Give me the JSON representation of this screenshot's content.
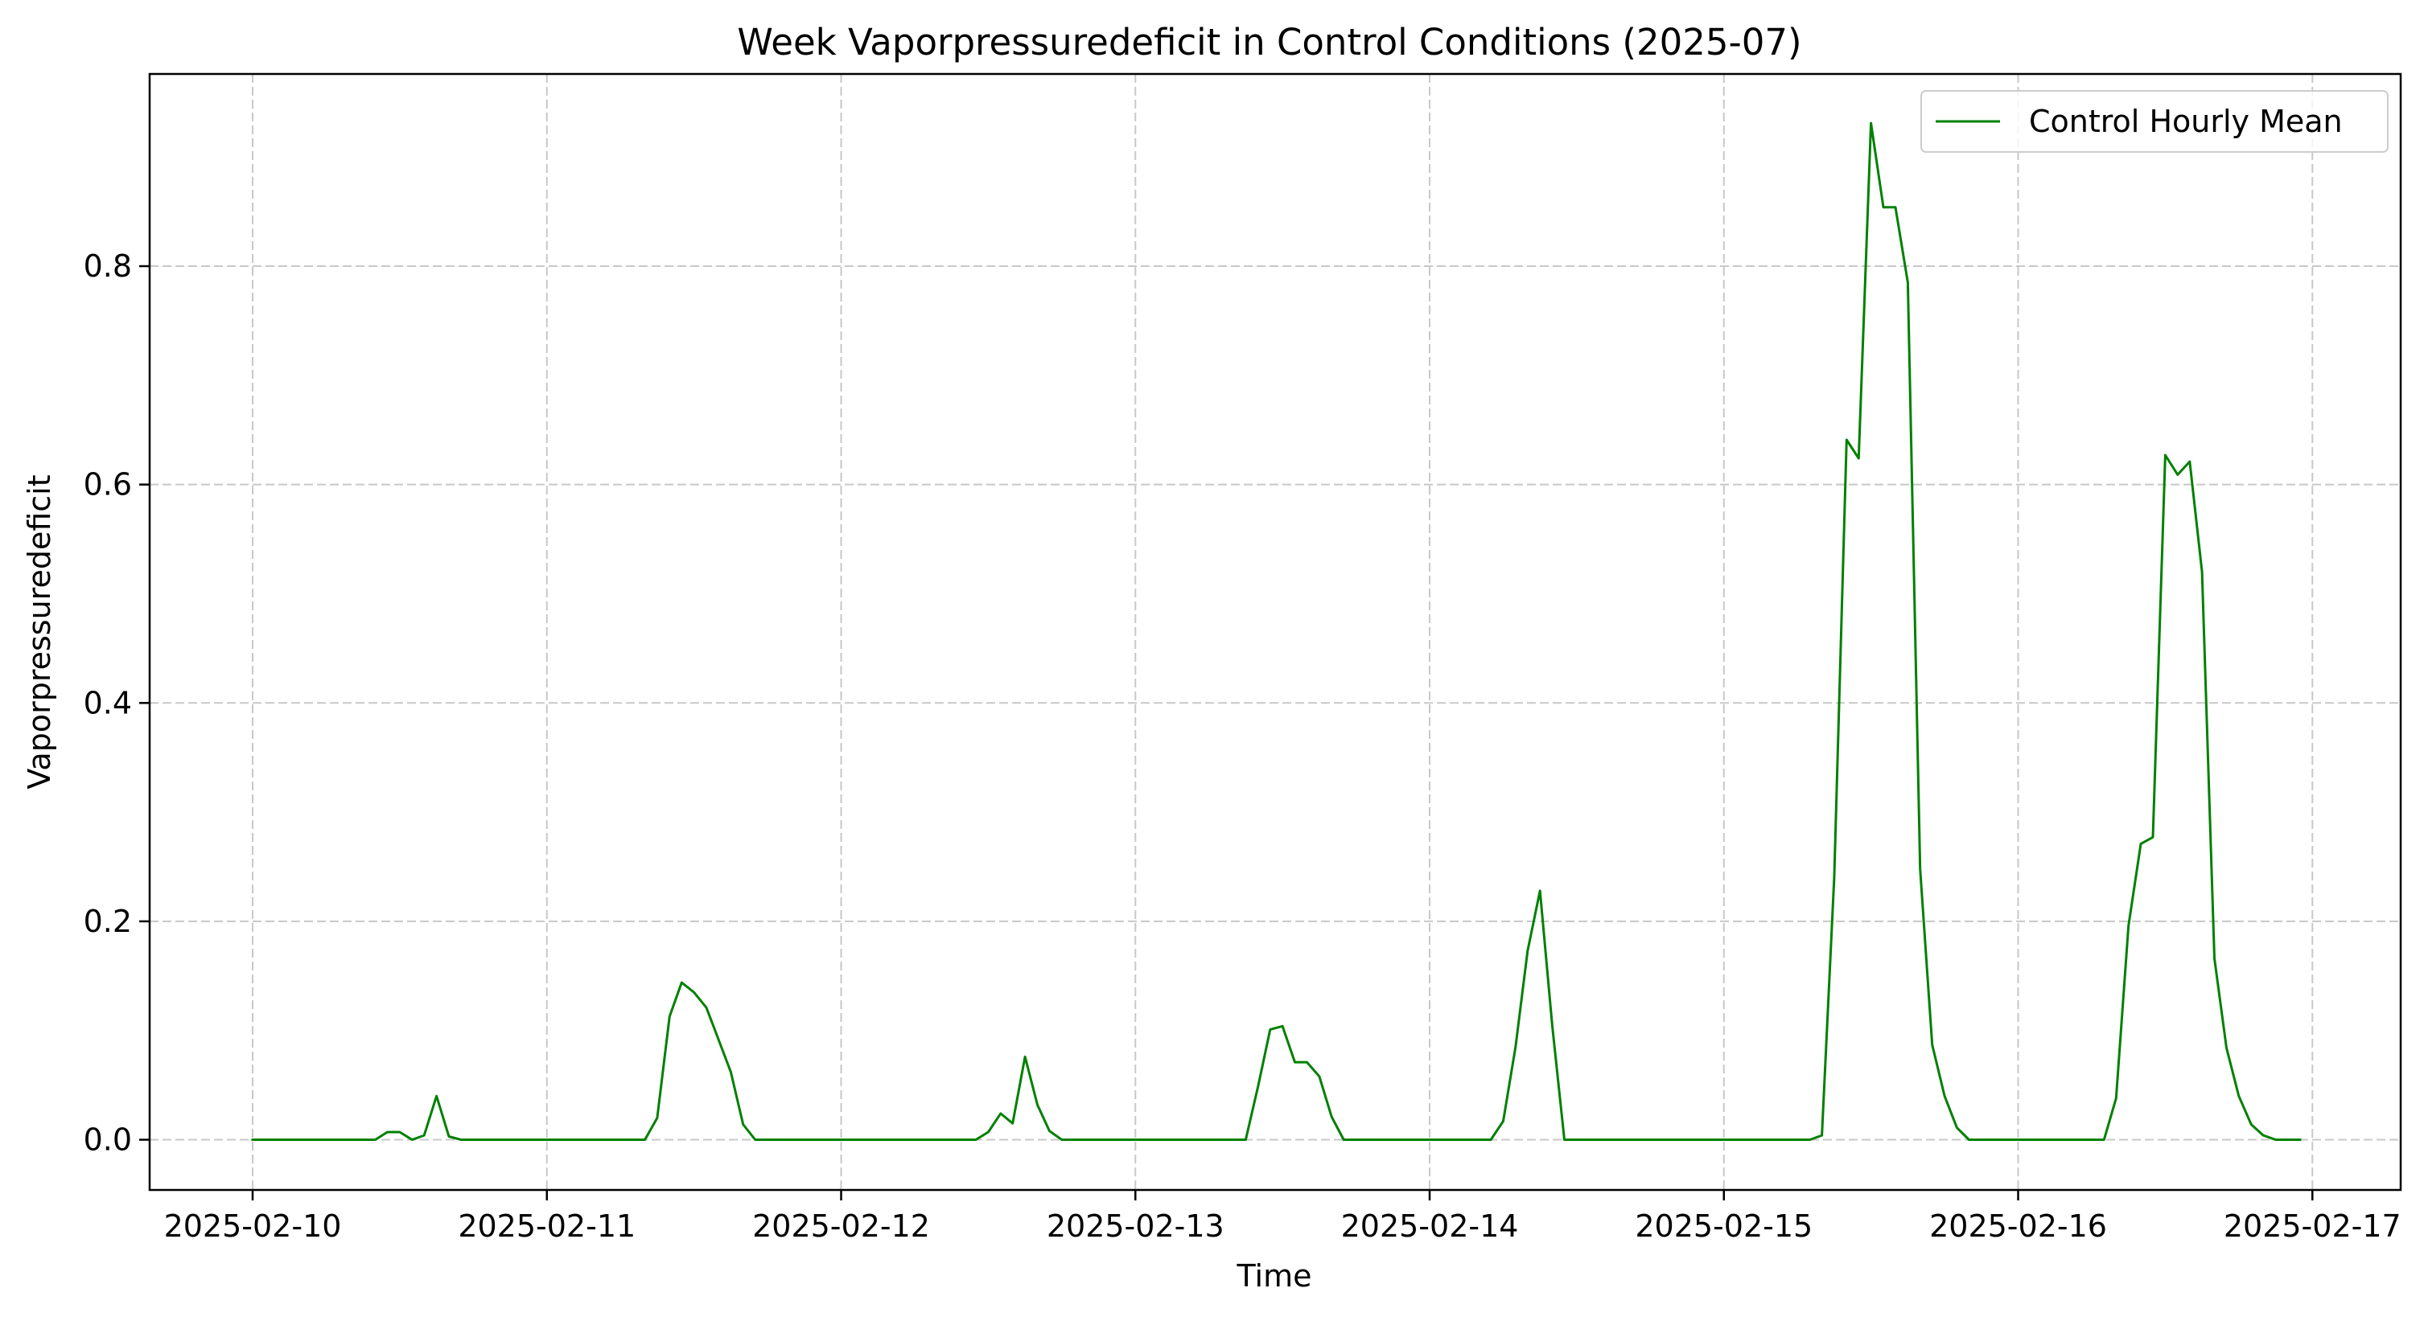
{
  "chart_data": {
    "type": "line",
    "title": "Week Vaporpressuredeficit in Control Conditions (2025-07)",
    "xlabel": "Time",
    "ylabel": "Vaporpressuredeficit",
    "xlim": [
      -0.35,
      7.3
    ],
    "ylim": [
      -0.046,
      0.976
    ],
    "x_ticks": [
      0,
      1,
      2,
      3,
      4,
      5,
      6,
      7
    ],
    "x_tick_labels": [
      "2025-02-10",
      "2025-02-11",
      "2025-02-12",
      "2025-02-13",
      "2025-02-14",
      "2025-02-15",
      "2025-02-16",
      "2025-02-17"
    ],
    "y_ticks": [
      0.0,
      0.2,
      0.4,
      0.6,
      0.8
    ],
    "y_tick_labels": [
      "0.0",
      "0.2",
      "0.4",
      "0.6",
      "0.8"
    ],
    "grid": true,
    "legend_position": "top-right",
    "series": [
      {
        "name": "Control Hourly Mean",
        "color": "#008000",
        "x_unit": "days since 2025-02-10",
        "x": [
          0,
          0.417,
          0.458,
          0.5,
          0.542,
          0.583,
          0.625,
          0.667,
          0.708,
          1.333,
          1.375,
          1.417,
          1.458,
          1.5,
          1.542,
          1.583,
          1.625,
          1.667,
          1.708,
          2.458,
          2.5,
          2.542,
          2.583,
          2.625,
          2.667,
          2.708,
          2.75,
          3.375,
          3.417,
          3.458,
          3.5,
          3.542,
          3.583,
          3.625,
          3.667,
          3.708,
          4.208,
          4.25,
          4.292,
          4.333,
          4.375,
          4.417,
          4.458,
          5.292,
          5.333,
          5.375,
          5.417,
          5.458,
          5.5,
          5.542,
          5.583,
          5.625,
          5.667,
          5.708,
          5.75,
          5.792,
          5.833,
          6.292,
          6.333,
          6.375,
          6.417,
          6.458,
          6.5,
          6.542,
          6.583,
          6.625,
          6.667,
          6.708,
          6.75,
          6.792,
          6.833,
          6.875,
          6.958
        ],
        "y": [
          0.0,
          0.0,
          0.007,
          0.007,
          0.0,
          0.004,
          0.04,
          0.003,
          0.0,
          0.0,
          0.02,
          0.113,
          0.144,
          0.135,
          0.121,
          0.092,
          0.062,
          0.014,
          0.0,
          0.0,
          0.007,
          0.024,
          0.015,
          0.076,
          0.032,
          0.008,
          0.0,
          0.0,
          0.049,
          0.101,
          0.104,
          0.071,
          0.071,
          0.058,
          0.021,
          0.0,
          0.0,
          0.017,
          0.085,
          0.173,
          0.228,
          0.104,
          0.0,
          0.0,
          0.004,
          0.24,
          0.641,
          0.624,
          0.931,
          0.854,
          0.854,
          0.785,
          0.248,
          0.087,
          0.04,
          0.011,
          0.0,
          0.0,
          0.038,
          0.196,
          0.271,
          0.277,
          0.627,
          0.609,
          0.621,
          0.52,
          0.166,
          0.084,
          0.04,
          0.014,
          0.004,
          0.0,
          0.0
        ]
      }
    ]
  }
}
